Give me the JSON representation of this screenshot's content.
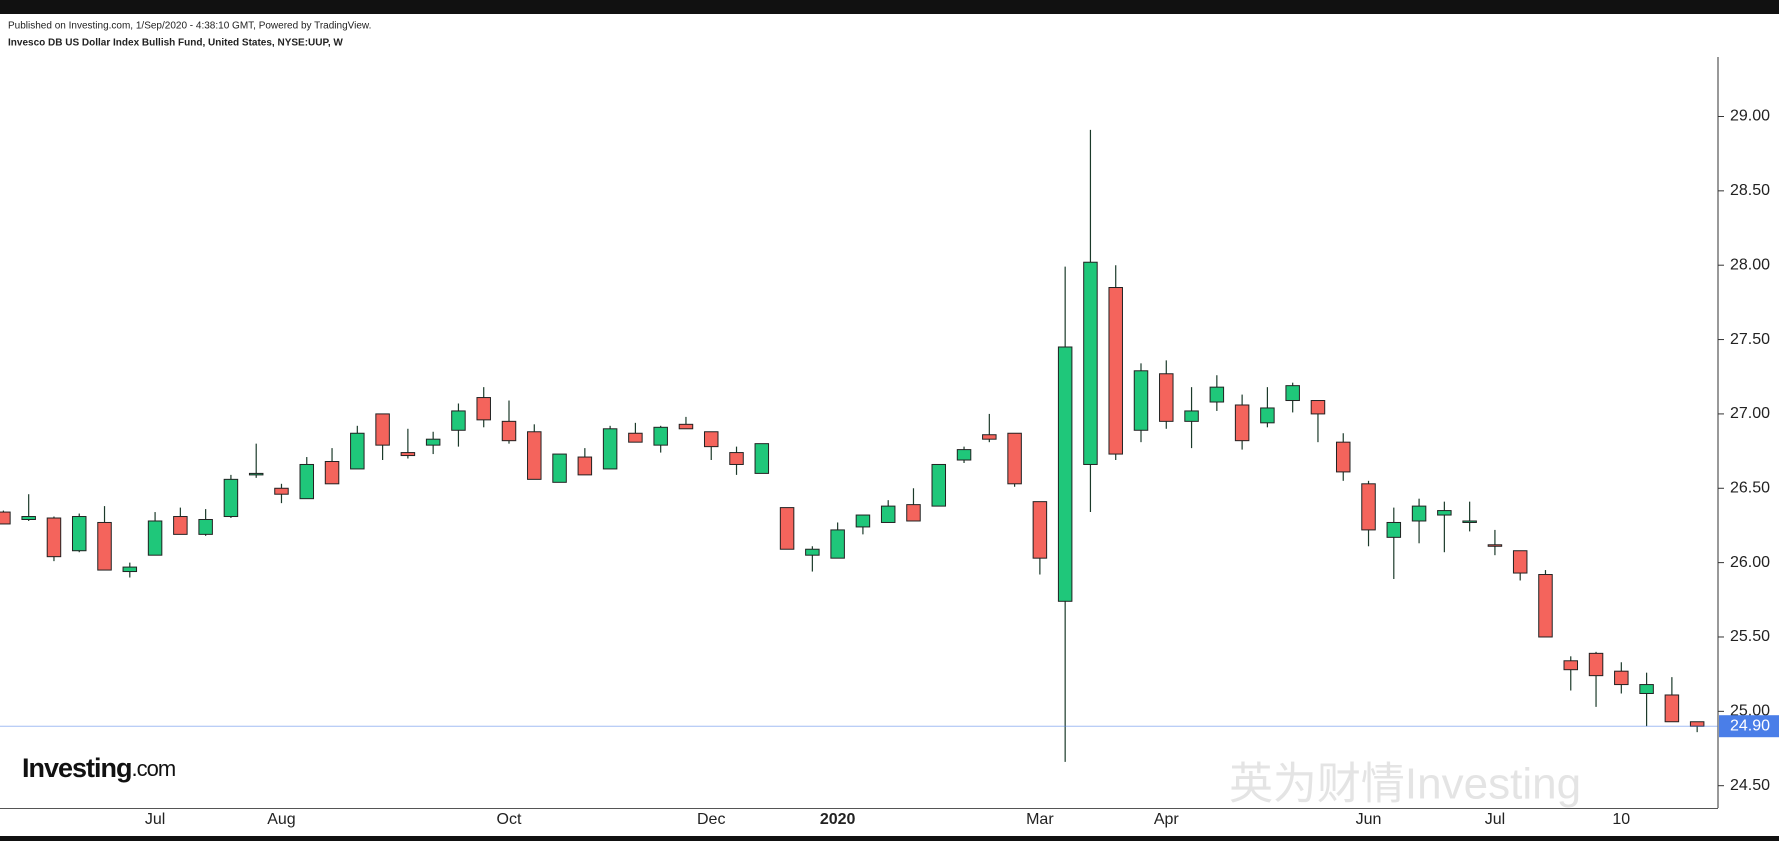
{
  "chart_data": {
    "type": "candlestick",
    "source_note": "Published on Investing.com, 1/Sep/2020 - 4:38:10 GMT, Powered by TradingView.",
    "title": "Invesco DB US Dollar Index Bullish Fund, United States, NYSE:UUP, W",
    "logo_text": "Investing",
    "logo_suffix": ".com",
    "watermark": "英为财情Investing",
    "categories": [
      null,
      null,
      null,
      null,
      null,
      null,
      "Jul",
      null,
      null,
      null,
      null,
      "Aug",
      null,
      null,
      null,
      null,
      null,
      null,
      null,
      null,
      "Oct",
      null,
      null,
      null,
      null,
      null,
      null,
      null,
      "Dec",
      null,
      null,
      null,
      null,
      "2020",
      null,
      null,
      null,
      null,
      null,
      null,
      null,
      "Mar",
      null,
      null,
      null,
      null,
      "Apr",
      null,
      null,
      null,
      null,
      null,
      null,
      null,
      "Jun",
      null,
      null,
      null,
      null,
      "Jul",
      null,
      null,
      null,
      null,
      "10",
      null,
      null,
      null
    ],
    "open": [
      26.34,
      26.29,
      26.3,
      26.08,
      26.27,
      25.94,
      26.05,
      26.31,
      26.19,
      26.31,
      26.59,
      26.5,
      26.43,
      26.68,
      26.63,
      27.0,
      26.74,
      26.79,
      26.89,
      27.11,
      26.95,
      26.88,
      26.54,
      26.71,
      26.63,
      26.87,
      26.79,
      26.93,
      26.88,
      26.74,
      26.6,
      26.37,
      26.05,
      26.03,
      26.24,
      26.27,
      26.39,
      26.38,
      26.69,
      26.86,
      26.87,
      26.41,
      25.74,
      26.66,
      27.85,
      26.89,
      27.27,
      26.95,
      27.08,
      27.06,
      26.94,
      27.09,
      27.09,
      26.81,
      26.53,
      26.17,
      26.28,
      26.32,
      26.27,
      26.12,
      26.08,
      25.92,
      25.34,
      25.39,
      25.27,
      25.12,
      25.11,
      24.93
    ],
    "high": [
      26.35,
      26.46,
      26.31,
      26.33,
      26.38,
      26.0,
      26.34,
      26.37,
      26.36,
      26.59,
      26.8,
      26.53,
      26.71,
      26.77,
      26.92,
      27.0,
      26.9,
      26.88,
      27.07,
      27.18,
      27.09,
      26.93,
      26.73,
      26.77,
      26.92,
      26.94,
      26.92,
      26.98,
      26.88,
      26.78,
      26.8,
      26.37,
      26.11,
      26.27,
      26.32,
      26.42,
      26.5,
      26.66,
      26.78,
      27.0,
      26.87,
      26.41,
      27.99,
      28.91,
      28.0,
      27.34,
      27.36,
      27.18,
      27.26,
      27.13,
      27.18,
      27.21,
      27.09,
      26.87,
      26.55,
      26.37,
      26.43,
      26.41,
      26.41,
      26.22,
      26.08,
      25.95,
      25.37,
      25.4,
      25.33,
      25.26,
      25.23,
      24.93
    ],
    "low": [
      26.26,
      26.28,
      26.01,
      26.07,
      25.95,
      25.9,
      26.05,
      26.19,
      26.18,
      26.3,
      26.57,
      26.4,
      26.43,
      26.53,
      26.63,
      26.69,
      26.7,
      26.73,
      26.78,
      26.91,
      26.8,
      26.56,
      26.54,
      26.59,
      26.63,
      26.81,
      26.74,
      26.9,
      26.69,
      26.59,
      26.6,
      26.09,
      25.94,
      26.03,
      26.19,
      26.27,
      26.28,
      26.38,
      26.67,
      26.81,
      26.51,
      25.92,
      24.66,
      26.34,
      26.69,
      26.81,
      26.9,
      26.77,
      27.02,
      26.76,
      26.91,
      27.01,
      26.81,
      26.55,
      26.11,
      25.89,
      26.13,
      26.07,
      26.21,
      26.05,
      25.88,
      25.5,
      25.14,
      25.03,
      25.12,
      24.9,
      24.93,
      24.86
    ],
    "close": [
      26.26,
      26.31,
      26.04,
      26.31,
      25.95,
      25.97,
      26.28,
      26.19,
      26.29,
      26.56,
      26.6,
      26.46,
      26.66,
      26.53,
      26.87,
      26.79,
      26.72,
      26.83,
      27.02,
      26.96,
      26.82,
      26.56,
      26.73,
      26.59,
      26.9,
      26.81,
      26.91,
      26.9,
      26.78,
      26.66,
      26.8,
      26.09,
      26.09,
      26.22,
      26.32,
      26.38,
      26.28,
      26.66,
      26.76,
      26.83,
      26.53,
      26.03,
      27.45,
      28.02,
      26.73,
      27.29,
      26.95,
      27.02,
      27.18,
      26.82,
      27.04,
      27.19,
      27.0,
      26.61,
      26.22,
      26.27,
      26.38,
      26.35,
      26.28,
      26.11,
      25.93,
      25.5,
      25.28,
      25.24,
      25.18,
      25.18,
      24.93,
      24.9
    ],
    "up_color": "#1fc77a",
    "down_color": "#f4645c",
    "last_color": "#4a7ee8",
    "last_price": {
      "value": 24.9,
      "label": "24.90"
    },
    "ylim": [
      24.35,
      29.4
    ],
    "yticks": [
      {
        "value": 24.5,
        "label": "24.50"
      },
      {
        "value": 25,
        "label": "25.00"
      },
      {
        "value": 25.5,
        "label": "25.50"
      },
      {
        "value": 26,
        "label": "26.00"
      },
      {
        "value": 26.5,
        "label": "26.50"
      },
      {
        "value": 27,
        "label": "27.00"
      },
      {
        "value": 27.5,
        "label": "27.50"
      },
      {
        "value": 28,
        "label": "28.00"
      },
      {
        "value": 28.5,
        "label": "28.50"
      },
      {
        "value": 29,
        "label": "29.00"
      }
    ]
  }
}
